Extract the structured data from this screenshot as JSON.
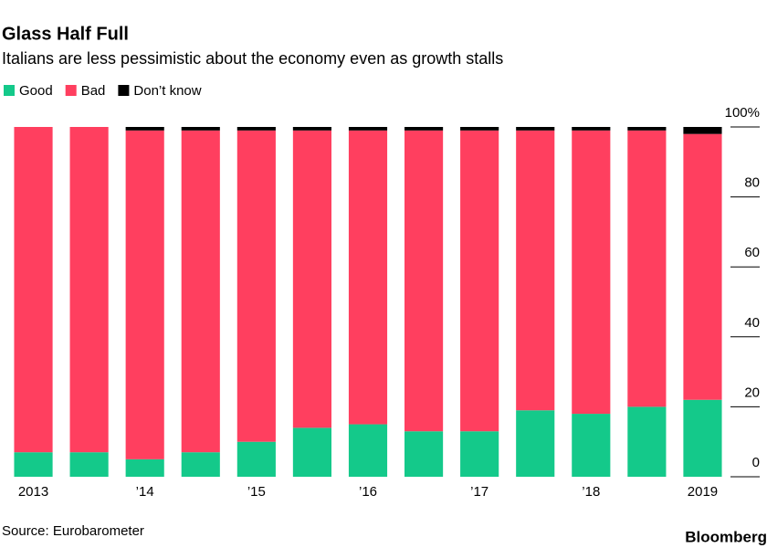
{
  "chart_data": {
    "type": "stacked-bar",
    "title": "Glass Half Full",
    "subtitle": "Italians are less pessimistic about the economy even as growth stalls",
    "categories": [
      "2013",
      null,
      "’14",
      null,
      "’15",
      null,
      "’16",
      null,
      "’17",
      null,
      "’18",
      null,
      "2019"
    ],
    "series": [
      {
        "name": "Good",
        "color": "#14c98a",
        "values": [
          7,
          7,
          5,
          7,
          10,
          14,
          15,
          13,
          13,
          19,
          18,
          20,
          22
        ]
      },
      {
        "name": "Bad",
        "color": "#ff3f5f",
        "values": [
          93,
          93,
          94,
          92,
          89,
          85,
          84,
          86,
          86,
          80,
          81,
          79,
          76
        ]
      },
      {
        "name": "Don’t know",
        "color": "#000000",
        "values": [
          0,
          0,
          1,
          1,
          1,
          1,
          1,
          1,
          1,
          1,
          1,
          1,
          2
        ]
      }
    ],
    "ylim": [
      0,
      100
    ],
    "yticks": [
      0,
      20,
      40,
      60,
      80,
      {
        "value": 100,
        "label": "100%"
      }
    ],
    "legend": "top-left",
    "source": "Source: Eurobarometer",
    "brand": "Bloomberg"
  }
}
